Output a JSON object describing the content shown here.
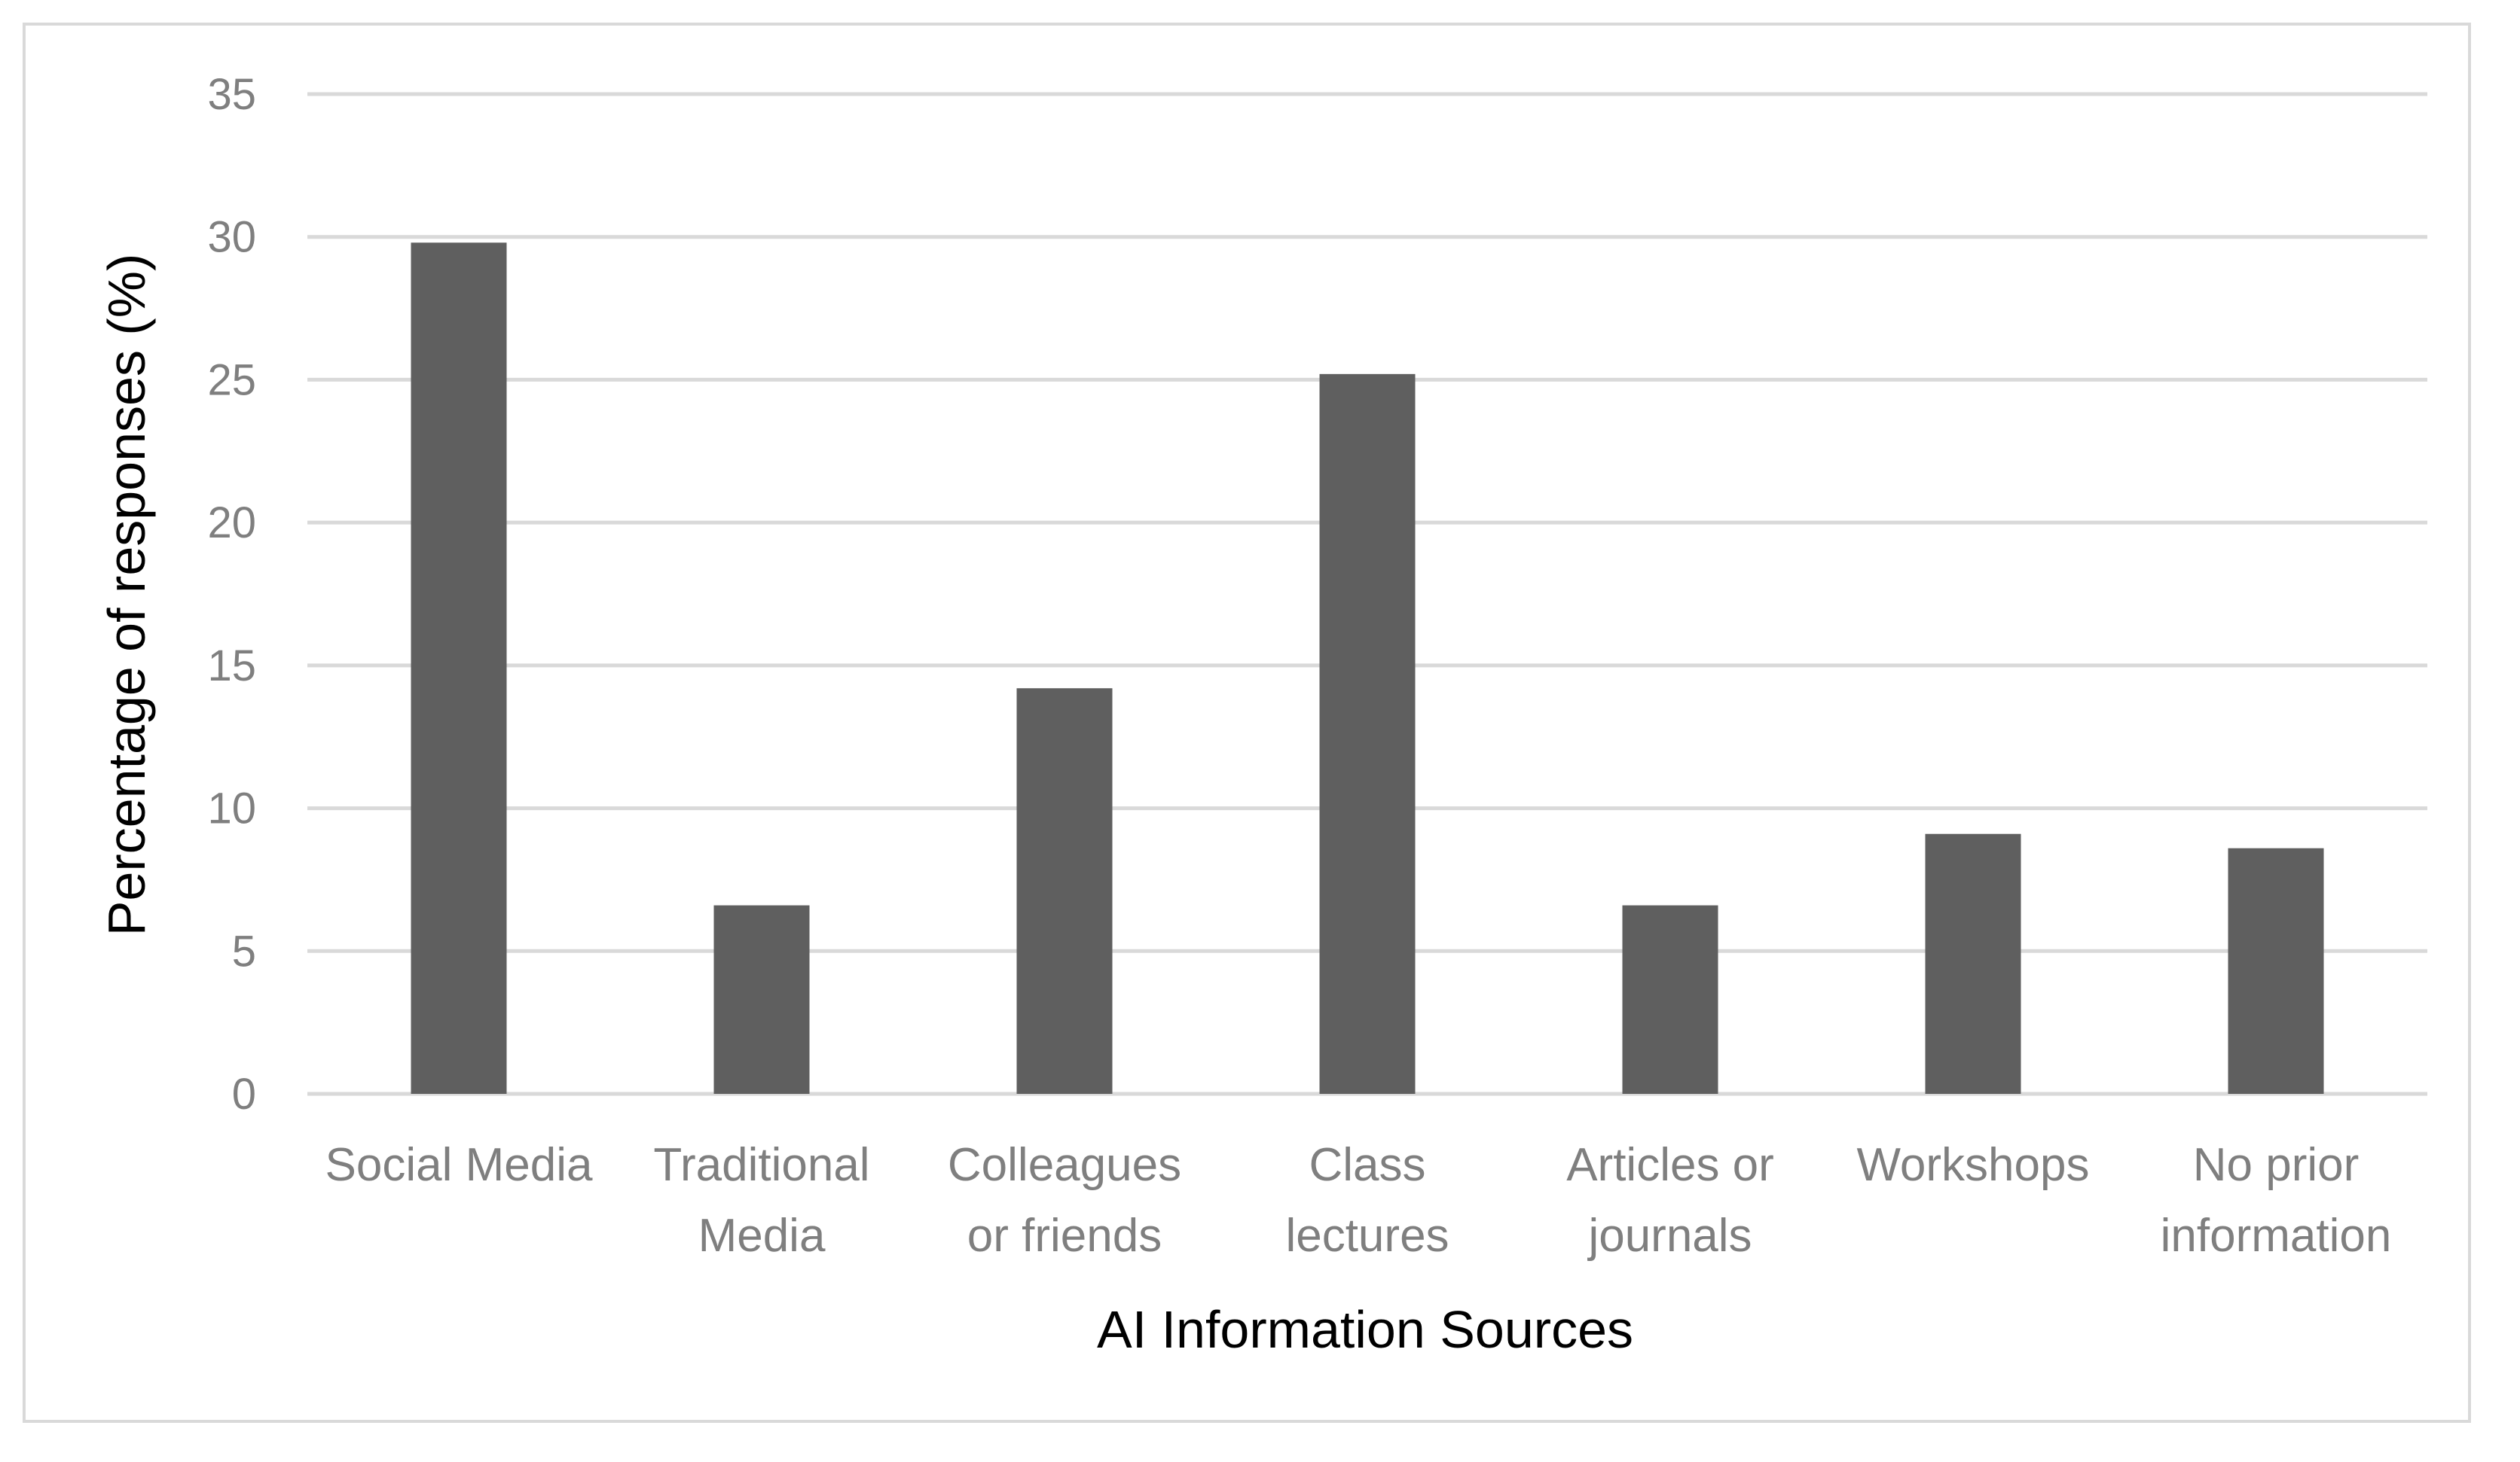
{
  "chart_data": {
    "type": "bar",
    "categories": [
      [
        "Social Media"
      ],
      [
        "Traditional",
        "Media"
      ],
      [
        "Colleagues",
        "or friends"
      ],
      [
        "Class",
        "lectures"
      ],
      [
        "Articles or",
        "journals"
      ],
      [
        "Workshops"
      ],
      [
        "No prior",
        "information"
      ]
    ],
    "values": [
      29.8,
      6.6,
      14.2,
      25.2,
      6.6,
      9.1,
      8.6
    ],
    "title": "",
    "xlabel": "AI Information Sources",
    "ylabel": "Percentage of responses (%)",
    "ylim": [
      0,
      35
    ],
    "yticks": [
      0,
      5,
      10,
      15,
      20,
      25,
      30,
      35
    ],
    "grid": true,
    "legend": "none",
    "colors": {
      "bar": "#5f5f5f",
      "grid": "#d9d9d9",
      "tick_text": "#7f7f7f",
      "axis_title": "#000000"
    }
  }
}
